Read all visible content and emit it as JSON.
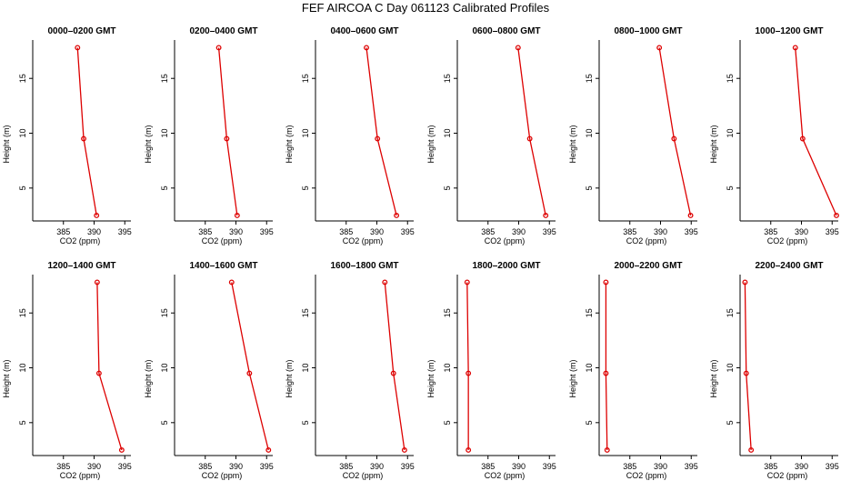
{
  "title": "FEF AIRCOA C  Day 061123  Calibrated Profiles",
  "colors": {
    "series": "#dd0000",
    "axis": "#000000"
  },
  "chart_data": [
    {
      "type": "line",
      "title": "0000–0200 GMT",
      "xlabel": "CO2 (ppm)",
      "ylabel": "Height (m)",
      "xlim": [
        380,
        396
      ],
      "ylim": [
        2,
        18.5
      ],
      "x_ticks": [
        385,
        390,
        395
      ],
      "y_ticks": [
        5,
        10,
        15
      ],
      "x": [
        390.4,
        388.3,
        387.3
      ],
      "y": [
        2.5,
        9.5,
        17.8
      ]
    },
    {
      "type": "line",
      "title": "0200–0400 GMT",
      "xlabel": "CO2 (ppm)",
      "ylabel": "Height (m)",
      "xlim": [
        380,
        396
      ],
      "ylim": [
        2,
        18.5
      ],
      "x_ticks": [
        385,
        390,
        395
      ],
      "y_ticks": [
        5,
        10,
        15
      ],
      "x": [
        390.2,
        388.5,
        387.2
      ],
      "y": [
        2.5,
        9.5,
        17.8
      ]
    },
    {
      "type": "line",
      "title": "0400–0600 GMT",
      "xlabel": "CO2 (ppm)",
      "ylabel": "Height (m)",
      "xlim": [
        380,
        396
      ],
      "ylim": [
        2,
        18.5
      ],
      "x_ticks": [
        385,
        390,
        395
      ],
      "y_ticks": [
        5,
        10,
        15
      ],
      "x": [
        393.2,
        390.1,
        388.3
      ],
      "y": [
        2.5,
        9.5,
        17.8
      ]
    },
    {
      "type": "line",
      "title": "0600–0800 GMT",
      "xlabel": "CO2 (ppm)",
      "ylabel": "Height (m)",
      "xlim": [
        380,
        396
      ],
      "ylim": [
        2,
        18.5
      ],
      "x_ticks": [
        385,
        390,
        395
      ],
      "y_ticks": [
        5,
        10,
        15
      ],
      "x": [
        394.4,
        391.8,
        389.9
      ],
      "y": [
        2.5,
        9.5,
        17.8
      ]
    },
    {
      "type": "line",
      "title": "0800–1000 GMT",
      "xlabel": "CO2 (ppm)",
      "ylabel": "Height (m)",
      "xlim": [
        380,
        396
      ],
      "ylim": [
        2,
        18.5
      ],
      "x_ticks": [
        385,
        390,
        395
      ],
      "y_ticks": [
        5,
        10,
        15
      ],
      "x": [
        394.9,
        392.2,
        389.8
      ],
      "y": [
        2.5,
        9.5,
        17.8
      ]
    },
    {
      "type": "line",
      "title": "1000–1200 GMT",
      "xlabel": "CO2 (ppm)",
      "ylabel": "Height (m)",
      "xlim": [
        380,
        396
      ],
      "ylim": [
        2,
        18.5
      ],
      "x_ticks": [
        385,
        390,
        395
      ],
      "y_ticks": [
        5,
        10,
        15
      ],
      "x": [
        395.7,
        390.2,
        389.0
      ],
      "y": [
        2.5,
        9.5,
        17.8
      ]
    },
    {
      "type": "line",
      "title": "1200–1400 GMT",
      "xlabel": "CO2 (ppm)",
      "ylabel": "Height (m)",
      "xlim": [
        380,
        396
      ],
      "ylim": [
        2,
        18.5
      ],
      "x_ticks": [
        385,
        390,
        395
      ],
      "y_ticks": [
        5,
        10,
        15
      ],
      "x": [
        394.5,
        390.8,
        390.5
      ],
      "y": [
        2.5,
        9.5,
        17.8
      ]
    },
    {
      "type": "line",
      "title": "1400–1600 GMT",
      "xlabel": "CO2 (ppm)",
      "ylabel": "Height (m)",
      "xlim": [
        380,
        396
      ],
      "ylim": [
        2,
        18.5
      ],
      "x_ticks": [
        385,
        390,
        395
      ],
      "y_ticks": [
        5,
        10,
        15
      ],
      "x": [
        395.3,
        392.2,
        389.3
      ],
      "y": [
        2.5,
        9.5,
        17.8
      ]
    },
    {
      "type": "line",
      "title": "1600–1800 GMT",
      "xlabel": "CO2 (ppm)",
      "ylabel": "Height (m)",
      "xlim": [
        380,
        396
      ],
      "ylim": [
        2,
        18.5
      ],
      "x_ticks": [
        385,
        390,
        395
      ],
      "y_ticks": [
        5,
        10,
        15
      ],
      "x": [
        394.5,
        392.7,
        391.3
      ],
      "y": [
        2.5,
        9.5,
        17.8
      ]
    },
    {
      "type": "line",
      "title": "1800–2000 GMT",
      "xlabel": "CO2 (ppm)",
      "ylabel": "Height (m)",
      "xlim": [
        380,
        396
      ],
      "ylim": [
        2,
        18.5
      ],
      "x_ticks": [
        385,
        390,
        395
      ],
      "y_ticks": [
        5,
        10,
        15
      ],
      "x": [
        381.8,
        381.8,
        381.6
      ],
      "y": [
        2.5,
        9.5,
        17.8
      ]
    },
    {
      "type": "line",
      "title": "2000–2200 GMT",
      "xlabel": "CO2 (ppm)",
      "ylabel": "Height (m)",
      "xlim": [
        380,
        396
      ],
      "ylim": [
        2,
        18.5
      ],
      "x_ticks": [
        385,
        390,
        395
      ],
      "y_ticks": [
        5,
        10,
        15
      ],
      "x": [
        381.3,
        381.1,
        381.1
      ],
      "y": [
        2.5,
        9.5,
        17.8
      ]
    },
    {
      "type": "line",
      "title": "2200–2400 GMT",
      "xlabel": "CO2 (ppm)",
      "ylabel": "Height (m)",
      "xlim": [
        380,
        396
      ],
      "ylim": [
        2,
        18.5
      ],
      "x_ticks": [
        385,
        390,
        395
      ],
      "y_ticks": [
        5,
        10,
        15
      ],
      "x": [
        381.8,
        381.0,
        380.8
      ],
      "y": [
        2.5,
        9.5,
        17.8
      ]
    }
  ]
}
